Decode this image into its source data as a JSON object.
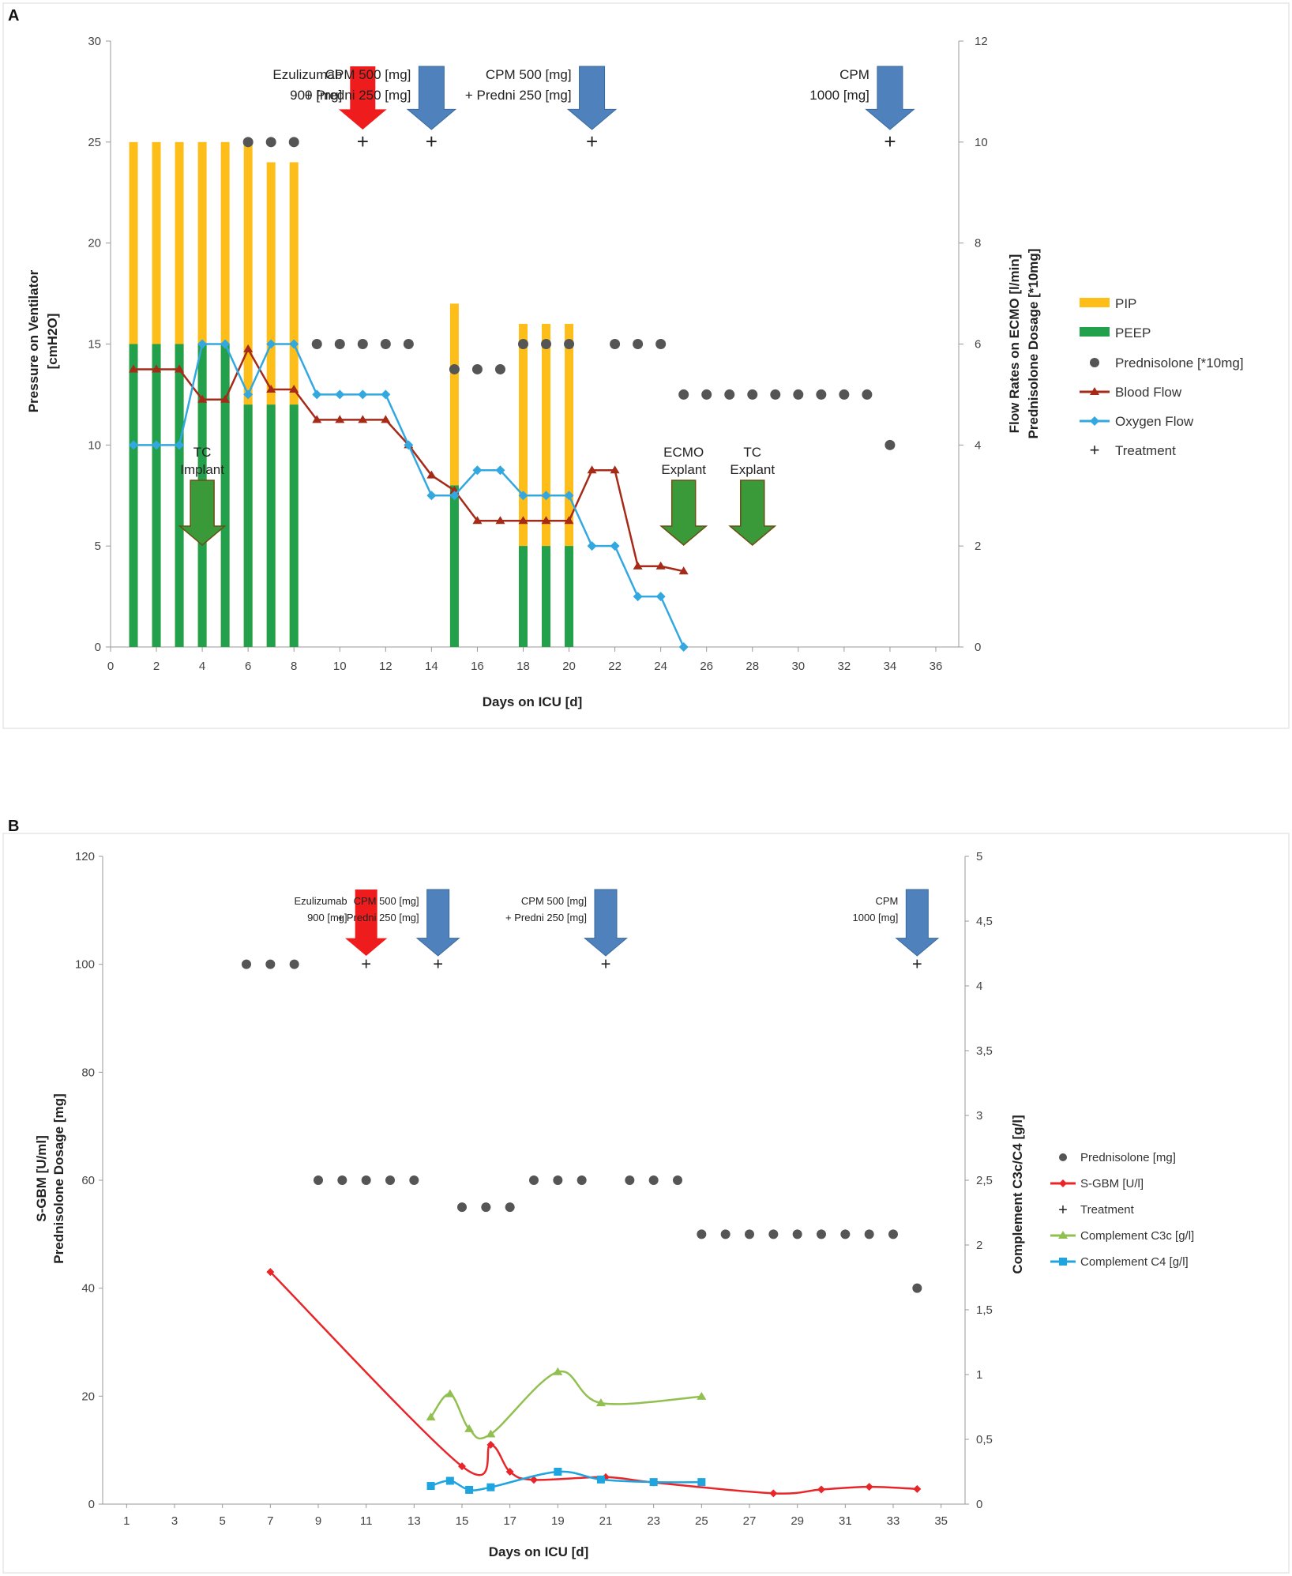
{
  "chart_data": [
    {
      "panel_label": "A",
      "type": "bar",
      "xlabel": "Days on ICU [d]",
      "ylabel": [
        "Pressure on Ventilator",
        "[cmH2O]"
      ],
      "y2label": [
        "Flow Rates on ECMO [l/min]",
        "Prednisolone Dosage [*10mg]"
      ],
      "xlim": [
        0,
        37
      ],
      "x_ticks": [
        "0",
        "2",
        "4",
        "6",
        "8",
        "10",
        "12",
        "14",
        "16",
        "18",
        "20",
        "22",
        "24",
        "26",
        "28",
        "30",
        "32",
        "34",
        "36"
      ],
      "ylim": [
        0,
        30
      ],
      "y_ticks": [
        "0",
        "5",
        "10",
        "15",
        "20",
        "25",
        "30"
      ],
      "y2lim": [
        0,
        12
      ],
      "y2_ticks": [
        "0",
        "2",
        "4",
        "6",
        "8",
        "10",
        "12"
      ],
      "legend": [
        "PIP",
        "PEEP",
        "Prednisolone [*10mg]",
        "Blood Flow",
        "Oxygen Flow",
        "Treatment"
      ],
      "colors": {
        "pip": "#FDBE1A",
        "peep": "#22A04B",
        "prednisolone": "#555555",
        "blood": "#A52A18",
        "oxygen": "#33A8E0",
        "treatment": "#222222",
        "arrow_red": "#EE1C1C",
        "arrow_blue": "#4F81BD",
        "arrow_green": "#3A9A3A",
        "arrow_outline_green": "#6B4F16"
      },
      "pip": [
        {
          "x": 1,
          "y": 25
        },
        {
          "x": 2,
          "y": 25
        },
        {
          "x": 3,
          "y": 25
        },
        {
          "x": 4,
          "y": 25
        },
        {
          "x": 5,
          "y": 25
        },
        {
          "x": 6,
          "y": 25
        },
        {
          "x": 7,
          "y": 24
        },
        {
          "x": 8,
          "y": 24
        },
        {
          "x": 15,
          "y": 17
        },
        {
          "x": 18,
          "y": 16
        },
        {
          "x": 19,
          "y": 16
        },
        {
          "x": 20,
          "y": 16
        }
      ],
      "peep": [
        {
          "x": 1,
          "y": 15
        },
        {
          "x": 2,
          "y": 15
        },
        {
          "x": 3,
          "y": 15
        },
        {
          "x": 4,
          "y": 15
        },
        {
          "x": 5,
          "y": 15
        },
        {
          "x": 6,
          "y": 12
        },
        {
          "x": 7,
          "y": 12
        },
        {
          "x": 8,
          "y": 12
        },
        {
          "x": 15,
          "y": 8
        },
        {
          "x": 18,
          "y": 5
        },
        {
          "x": 19,
          "y": 5
        },
        {
          "x": 20,
          "y": 5
        }
      ],
      "prednisolone": [
        {
          "x": 6,
          "y": 10
        },
        {
          "x": 7,
          "y": 10
        },
        {
          "x": 8,
          "y": 10
        },
        {
          "x": 9,
          "y": 6
        },
        {
          "x": 10,
          "y": 6
        },
        {
          "x": 11,
          "y": 6
        },
        {
          "x": 12,
          "y": 6
        },
        {
          "x": 13,
          "y": 6
        },
        {
          "x": 15,
          "y": 5.5
        },
        {
          "x": 16,
          "y": 5.5
        },
        {
          "x": 17,
          "y": 5.5
        },
        {
          "x": 18,
          "y": 6
        },
        {
          "x": 19,
          "y": 6
        },
        {
          "x": 20,
          "y": 6
        },
        {
          "x": 22,
          "y": 6
        },
        {
          "x": 23,
          "y": 6
        },
        {
          "x": 24,
          "y": 6
        },
        {
          "x": 25,
          "y": 5
        },
        {
          "x": 26,
          "y": 5
        },
        {
          "x": 27,
          "y": 5
        },
        {
          "x": 28,
          "y": 5
        },
        {
          "x": 29,
          "y": 5
        },
        {
          "x": 30,
          "y": 5
        },
        {
          "x": 31,
          "y": 5
        },
        {
          "x": 32,
          "y": 5
        },
        {
          "x": 33,
          "y": 5
        },
        {
          "x": 34,
          "y": 4
        }
      ],
      "blood_flow": [
        {
          "x": 1,
          "y": 5.5
        },
        {
          "x": 2,
          "y": 5.5
        },
        {
          "x": 3,
          "y": 5.5
        },
        {
          "x": 4,
          "y": 4.9
        },
        {
          "x": 5,
          "y": 4.9
        },
        {
          "x": 6,
          "y": 5.9
        },
        {
          "x": 7,
          "y": 5.1
        },
        {
          "x": 8,
          "y": 5.1
        },
        {
          "x": 9,
          "y": 4.5
        },
        {
          "x": 10,
          "y": 4.5
        },
        {
          "x": 11,
          "y": 4.5
        },
        {
          "x": 12,
          "y": 4.5
        },
        {
          "x": 13,
          "y": 4
        },
        {
          "x": 14,
          "y": 3.4
        },
        {
          "x": 15,
          "y": 3.1
        },
        {
          "x": 16,
          "y": 2.5
        },
        {
          "x": 17,
          "y": 2.5
        },
        {
          "x": 18,
          "y": 2.5
        },
        {
          "x": 19,
          "y": 2.5
        },
        {
          "x": 20,
          "y": 2.5
        },
        {
          "x": 21,
          "y": 3.5
        },
        {
          "x": 22,
          "y": 3.5
        },
        {
          "x": 23,
          "y": 1.6
        },
        {
          "x": 24,
          "y": 1.6
        },
        {
          "x": 25,
          "y": 1.5
        }
      ],
      "oxygen_flow": [
        {
          "x": 1,
          "y": 4
        },
        {
          "x": 2,
          "y": 4
        },
        {
          "x": 3,
          "y": 4
        },
        {
          "x": 4,
          "y": 6
        },
        {
          "x": 5,
          "y": 6
        },
        {
          "x": 6,
          "y": 5
        },
        {
          "x": 7,
          "y": 6
        },
        {
          "x": 8,
          "y": 6
        },
        {
          "x": 9,
          "y": 5
        },
        {
          "x": 10,
          "y": 5
        },
        {
          "x": 11,
          "y": 5
        },
        {
          "x": 12,
          "y": 5
        },
        {
          "x": 13,
          "y": 4
        },
        {
          "x": 14,
          "y": 3
        },
        {
          "x": 15,
          "y": 3
        },
        {
          "x": 16,
          "y": 3.5
        },
        {
          "x": 17,
          "y": 3.5
        },
        {
          "x": 18,
          "y": 3
        },
        {
          "x": 19,
          "y": 3
        },
        {
          "x": 20,
          "y": 3
        },
        {
          "x": 21,
          "y": 2
        },
        {
          "x": 22,
          "y": 2
        },
        {
          "x": 23,
          "y": 1
        },
        {
          "x": 24,
          "y": 1
        },
        {
          "x": 25,
          "y": 0
        }
      ],
      "treatment": [
        {
          "x": 11,
          "y": 10
        },
        {
          "x": 14,
          "y": 10
        },
        {
          "x": 21,
          "y": 10
        },
        {
          "x": 34,
          "y": 10
        }
      ],
      "annotations": [
        {
          "x": 11,
          "color": "red",
          "lines": [
            "Ezulizumab",
            "900 [mg]"
          ]
        },
        {
          "x": 14,
          "color": "blue",
          "lines": [
            "CPM 500 [mg]",
            "+ Predni 250 [mg]"
          ]
        },
        {
          "x": 21,
          "color": "blue",
          "lines": [
            "CPM 500 [mg]",
            "+ Predni 250 [mg]"
          ]
        },
        {
          "x": 34,
          "color": "blue",
          "lines": [
            "CPM",
            "1000 [mg]"
          ]
        },
        {
          "x": 4,
          "color": "green",
          "lines": [
            "TC",
            "Implant"
          ]
        },
        {
          "x": 25,
          "color": "green",
          "lines": [
            "ECMO",
            "Explant"
          ]
        },
        {
          "x": 28,
          "color": "green",
          "lines": [
            "TC",
            "Explant"
          ]
        }
      ]
    },
    {
      "panel_label": "B",
      "type": "line",
      "xlabel": "Days on ICU [d]",
      "ylabel": [
        "S-GBM [U/ml]",
        "Prednisolone Dosage [mg]"
      ],
      "y2label": [
        "Complement C3c/C4 [g/l]"
      ],
      "xlim": [
        0,
        36
      ],
      "x_ticks": [
        "1",
        "3",
        "5",
        "7",
        "9",
        "11",
        "13",
        "15",
        "17",
        "19",
        "21",
        "23",
        "25",
        "27",
        "29",
        "31",
        "33",
        "35"
      ],
      "ylim": [
        0,
        120
      ],
      "y_ticks": [
        "0",
        "20",
        "40",
        "60",
        "80",
        "100",
        "120"
      ],
      "y2lim": [
        0,
        5
      ],
      "y2_ticks": [
        "0",
        "0,5",
        "1",
        "1,5",
        "2",
        "2,5",
        "3",
        "3,5",
        "4",
        "4,5",
        "5"
      ],
      "legend": [
        "Prednisolone [mg]",
        "S-GBM [U/l]",
        "Treatment",
        "Complement C3c [g/l]",
        "Complement C4 [g/l]"
      ],
      "colors": {
        "prednisolone": "#555555",
        "sgbm": "#E8262A",
        "treatment": "#222222",
        "c3c": "#92C050",
        "c4": "#1EA5E0",
        "arrow_red": "#EE1C1C",
        "arrow_blue": "#4F81BD"
      },
      "prednisolone": [
        {
          "x": 6,
          "y": 100
        },
        {
          "x": 7,
          "y": 100
        },
        {
          "x": 8,
          "y": 100
        },
        {
          "x": 9,
          "y": 60
        },
        {
          "x": 10,
          "y": 60
        },
        {
          "x": 11,
          "y": 60
        },
        {
          "x": 12,
          "y": 60
        },
        {
          "x": 13,
          "y": 60
        },
        {
          "x": 15,
          "y": 55
        },
        {
          "x": 16,
          "y": 55
        },
        {
          "x": 17,
          "y": 55
        },
        {
          "x": 18,
          "y": 60
        },
        {
          "x": 19,
          "y": 60
        },
        {
          "x": 20,
          "y": 60
        },
        {
          "x": 22,
          "y": 60
        },
        {
          "x": 23,
          "y": 60
        },
        {
          "x": 24,
          "y": 60
        },
        {
          "x": 25,
          "y": 50
        },
        {
          "x": 26,
          "y": 50
        },
        {
          "x": 27,
          "y": 50
        },
        {
          "x": 28,
          "y": 50
        },
        {
          "x": 29,
          "y": 50
        },
        {
          "x": 30,
          "y": 50
        },
        {
          "x": 31,
          "y": 50
        },
        {
          "x": 32,
          "y": 50
        },
        {
          "x": 33,
          "y": 50
        },
        {
          "x": 34,
          "y": 40
        }
      ],
      "sgbm": [
        {
          "x": 7,
          "y": 43
        },
        {
          "x": 15,
          "y": 7
        },
        {
          "x": 16.2,
          "y": 11
        },
        {
          "x": 17,
          "y": 6
        },
        {
          "x": 18,
          "y": 4.5
        },
        {
          "x": 21,
          "y": 5
        },
        {
          "x": 23,
          "y": 4
        },
        {
          "x": 28,
          "y": 2
        },
        {
          "x": 30,
          "y": 2.7
        },
        {
          "x": 32,
          "y": 3.2
        },
        {
          "x": 34,
          "y": 2.8
        }
      ],
      "c3c": [
        {
          "x": 13.7,
          "y": 0.67
        },
        {
          "x": 14.5,
          "y": 0.85
        },
        {
          "x": 15.3,
          "y": 0.58
        },
        {
          "x": 16.2,
          "y": 0.54
        },
        {
          "x": 19,
          "y": 1.02
        },
        {
          "x": 20.8,
          "y": 0.78
        },
        {
          "x": 25,
          "y": 0.83
        }
      ],
      "c4": [
        {
          "x": 13.7,
          "y": 0.14
        },
        {
          "x": 14.5,
          "y": 0.18
        },
        {
          "x": 15.3,
          "y": 0.11
        },
        {
          "x": 16.2,
          "y": 0.13
        },
        {
          "x": 19,
          "y": 0.25
        },
        {
          "x": 20.8,
          "y": 0.19
        },
        {
          "x": 23,
          "y": 0.17
        },
        {
          "x": 25,
          "y": 0.17
        }
      ],
      "treatment": [
        {
          "x": 11,
          "y": 100
        },
        {
          "x": 14,
          "y": 100
        },
        {
          "x": 21,
          "y": 100
        },
        {
          "x": 34,
          "y": 100
        }
      ],
      "annotations": [
        {
          "x": 11,
          "color": "red",
          "lines": [
            "Ezulizumab",
            "900 [mg]"
          ]
        },
        {
          "x": 14,
          "color": "blue",
          "lines": [
            "CPM 500 [mg]",
            "+ Predni 250 [mg]"
          ]
        },
        {
          "x": 21,
          "color": "blue",
          "lines": [
            "CPM 500 [mg]",
            "+ Predni 250 [mg]"
          ]
        },
        {
          "x": 34,
          "color": "blue",
          "lines": [
            "CPM",
            "1000 [mg]"
          ]
        }
      ]
    }
  ]
}
